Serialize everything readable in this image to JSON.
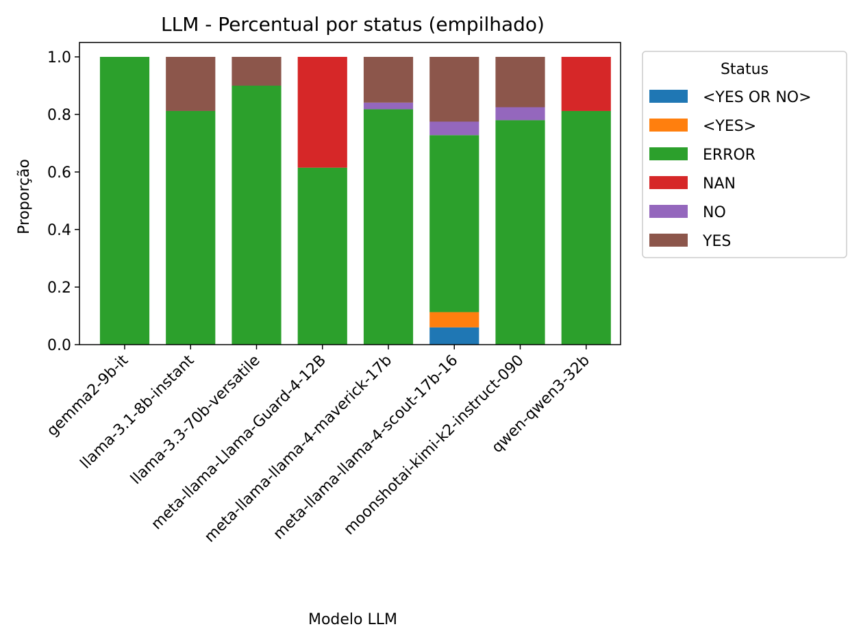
{
  "chart_data": {
    "type": "bar",
    "stacked": true,
    "title": "LLM - Percentual por status (empilhado)",
    "xlabel": "Modelo LLM",
    "ylabel": "Proporção",
    "ylim": [
      0,
      1.05
    ],
    "yticks": [
      "0.0",
      "0.2",
      "0.4",
      "0.6",
      "0.8",
      "1.0"
    ],
    "legend_title": "Status",
    "legend_position": "outside-top-right",
    "categories": [
      "gemma2-9b-it",
      "llama-3.1-8b-instant",
      "llama-3.3-70b-versatile",
      "meta-llama-Llama-Guard-4-12B",
      "meta-llama-llama-4-maverick-17b",
      "meta-llama-llama-4-scout-17b-16",
      "moonshotai-kimi-k2-instruct-090",
      "qwen-qwen3-32b"
    ],
    "series": [
      {
        "name": "<YES OR NO>",
        "color": "#1f77b4",
        "values": [
          0,
          0,
          0,
          0,
          0,
          0.06,
          0,
          0
        ]
      },
      {
        "name": "<YES>",
        "color": "#ff7f0e",
        "values": [
          0,
          0,
          0,
          0,
          0,
          0.053,
          0,
          0
        ]
      },
      {
        "name": "ERROR",
        "color": "#2ca02c",
        "values": [
          1.0,
          0.812,
          0.9,
          0.615,
          0.818,
          0.615,
          0.78,
          0.812
        ]
      },
      {
        "name": "NAN",
        "color": "#d62728",
        "values": [
          0,
          0,
          0,
          0.385,
          0,
          0,
          0,
          0.188
        ]
      },
      {
        "name": "NO",
        "color": "#9467bd",
        "values": [
          0,
          0,
          0,
          0,
          0.023,
          0.047,
          0.045,
          0
        ]
      },
      {
        "name": "YES",
        "color": "#8c564b",
        "values": [
          0,
          0.188,
          0.1,
          0,
          0.159,
          0.225,
          0.175,
          0
        ]
      }
    ]
  }
}
